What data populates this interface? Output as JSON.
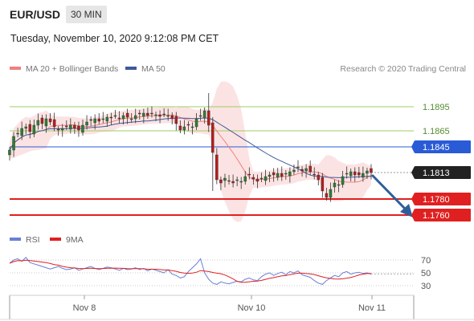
{
  "header": {
    "symbol": "EUR/USD",
    "timeframe": "30 MIN",
    "datetime": "Tuesday, November 10, 2020 9:12:08 PM CET"
  },
  "legend": {
    "bollinger_label": "MA 20 + Bollinger Bands",
    "bollinger_color": "#f08080",
    "ma50_label": "MA 50",
    "ma50_color": "#3d5a99",
    "credit": "Research © 2020 Trading Central"
  },
  "rsi_legend": {
    "rsi_label": "RSI",
    "rsi_color": "#6a7fd6",
    "ma9_label": "9MA",
    "ma9_color": "#e02020"
  },
  "colors": {
    "bull_candle": "#2e7d32",
    "bear_candle": "#b71c1c",
    "resistance_line": "#9ccc65",
    "pivot_line": "#2a5bd7",
    "support_line": "#e02020",
    "band_fill": "#fbd9d9",
    "arrow": "#2f5f9a"
  },
  "chart_data": {
    "type": "candlestick",
    "x_tick_labels": [
      "Nov 8",
      "Nov 10",
      "Nov 11"
    ],
    "price_range": [
      1.1748,
      1.1928
    ],
    "levels": [
      {
        "value": 1.1895,
        "label": "1.1895",
        "kind": "resistance"
      },
      {
        "value": 1.1865,
        "label": "1.1865",
        "kind": "resistance"
      },
      {
        "value": 1.1845,
        "label": "1.1845",
        "kind": "pivot"
      },
      {
        "value": 1.178,
        "label": "1.1780",
        "kind": "support"
      },
      {
        "value": 1.176,
        "label": "1.1760",
        "kind": "support"
      }
    ],
    "last_price": {
      "value": 1.1813,
      "label": "1.1813"
    },
    "close_series": [
      1.1841,
      1.1858,
      1.1862,
      1.1868,
      1.187,
      1.1864,
      1.1872,
      1.1878,
      1.1874,
      1.188,
      1.1876,
      1.187,
      1.1866,
      1.1868,
      1.187,
      1.1872,
      1.1868,
      1.1866,
      1.1872,
      1.1876,
      1.1878,
      1.188,
      1.1877,
      1.188,
      1.1882,
      1.1881,
      1.1884,
      1.188,
      1.1884,
      1.1882,
      1.188,
      1.1884,
      1.1886,
      1.1887,
      1.1884,
      1.1887,
      1.1885,
      1.1883,
      1.1886,
      1.1884,
      1.188,
      1.1874,
      1.1866,
      1.187,
      1.1872,
      1.187,
      1.188,
      1.1884,
      1.189,
      1.1872,
      1.1838,
      1.1804,
      1.18,
      1.1806,
      1.1802,
      1.18,
      1.1804,
      1.1802,
      1.1808,
      1.181,
      1.1805,
      1.1802,
      1.1806,
      1.1808,
      1.181,
      1.181,
      1.1812,
      1.1808,
      1.1812,
      1.1814,
      1.1816,
      1.182,
      1.1815,
      1.1818,
      1.1814,
      1.181,
      1.1804,
      1.179,
      1.1782,
      1.1792,
      1.18,
      1.1798,
      1.1808,
      1.1812,
      1.1814,
      1.181,
      1.181,
      1.1812,
      1.1815,
      1.1813
    ],
    "rsi": {
      "tick_labels": [
        "70",
        "50",
        "30"
      ],
      "range": [
        20,
        85
      ],
      "levels": [
        70,
        50,
        30
      ],
      "values": [
        65,
        70,
        72,
        68,
        74,
        66,
        64,
        62,
        60,
        58,
        56,
        58,
        60,
        57,
        55,
        56,
        58,
        54,
        56,
        58,
        60,
        57,
        55,
        57,
        59,
        58,
        56,
        54,
        57,
        55,
        56,
        58,
        55,
        57,
        53,
        56,
        54,
        52,
        50,
        55,
        48,
        46,
        42,
        44,
        52,
        58,
        64,
        72,
        50,
        40,
        34,
        32,
        36,
        34,
        33,
        35,
        37,
        36,
        40,
        42,
        39,
        38,
        44,
        48,
        50,
        46,
        49,
        51,
        47,
        52,
        50,
        53,
        47,
        45,
        43,
        38,
        34,
        32,
        38,
        42,
        46,
        44,
        50,
        52,
        48,
        50,
        51,
        49,
        50,
        48
      ]
    }
  }
}
